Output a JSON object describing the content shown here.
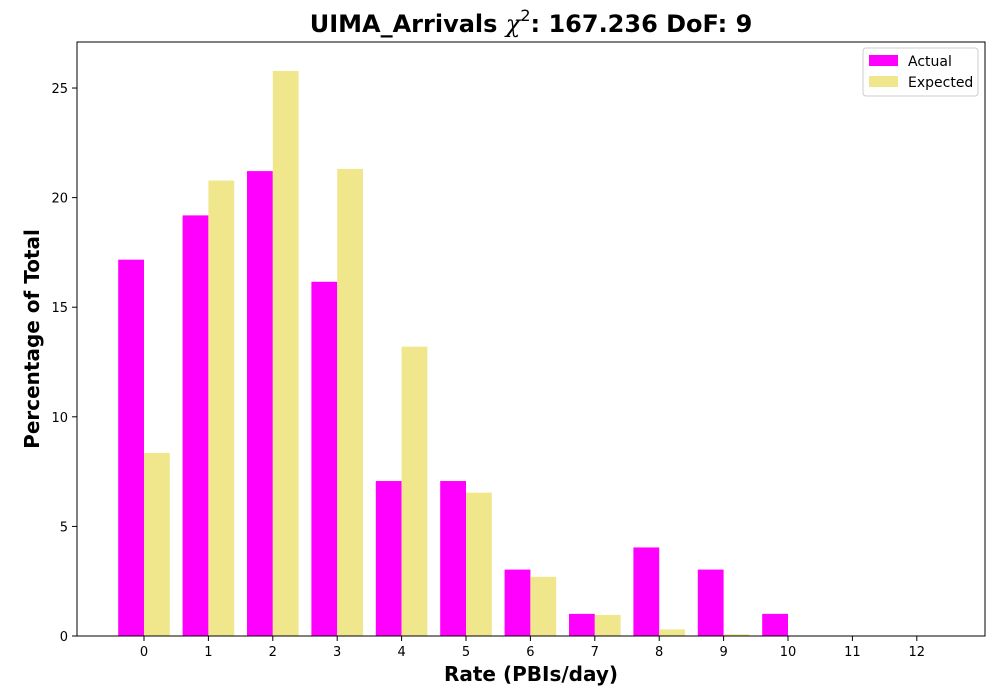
{
  "chart_data": {
    "type": "bar",
    "title": {
      "prefix": "UIMA_Arrivals ",
      "chi_symbol": "χ",
      "chi_superscript": "2",
      "suffix": ": 167.236 DoF: 9"
    },
    "xlabel": "Rate (PBIs/day)",
    "ylabel": "Percentage of Total",
    "categories": [
      "0",
      "1",
      "2",
      "3",
      "4",
      "5",
      "6",
      "7",
      "8",
      "9",
      "10",
      "11",
      "12"
    ],
    "series": [
      {
        "name": "Actual",
        "color": "#ff00ff",
        "values": [
          17.17,
          19.19,
          21.21,
          16.16,
          7.07,
          7.07,
          3.03,
          1.01,
          4.04,
          3.03,
          1.01,
          0,
          0
        ]
      },
      {
        "name": "Expected",
        "color": "#f0e68c",
        "values": [
          8.35,
          20.78,
          25.78,
          21.31,
          13.2,
          6.54,
          2.7,
          0.96,
          0.3,
          0.08,
          0.02,
          0.005,
          0.001
        ]
      }
    ],
    "ylim": [
      0,
      27.1
    ],
    "yticks": [
      0,
      5,
      10,
      15,
      20,
      25
    ],
    "legend_position": "top-right",
    "grid": false
  }
}
